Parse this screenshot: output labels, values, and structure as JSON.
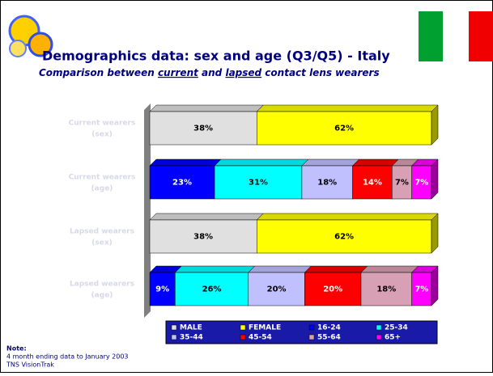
{
  "chart_data": {
    "type": "stacked-bar-3d",
    "title": "Demographics data: sex and age (Q3/Q5) - Italy",
    "subtitle": [
      "Comparison between ",
      "current",
      " and ",
      "lapsed",
      " contact lens wearers"
    ],
    "categories": [
      [
        "Current wearers",
        "(sex)"
      ],
      [
        "Current wearers",
        "(age)"
      ],
      [
        "Lapsed wearers",
        "(sex)"
      ],
      [
        "Lapsed wearers",
        "(age)"
      ]
    ],
    "series": [
      {
        "name": "MALE",
        "color": "#e0e0e0",
        "values": [
          38,
          null,
          38,
          null
        ],
        "value_labels": [
          "38%",
          null,
          "38%",
          null
        ]
      },
      {
        "name": "FEMALE",
        "color": "#ffff00",
        "values": [
          62,
          null,
          62,
          null
        ],
        "value_labels": [
          "62%",
          null,
          "62%",
          null
        ]
      },
      {
        "name": "16-24",
        "color": "#0000ff",
        "values": [
          null,
          23,
          null,
          9
        ],
        "value_labels": [
          null,
          "23%",
          null,
          "9%"
        ]
      },
      {
        "name": "25-34",
        "color": "#00ffff",
        "values": [
          null,
          31,
          null,
          26
        ],
        "value_labels": [
          null,
          "31%",
          null,
          "26%"
        ]
      },
      {
        "name": "35-44",
        "color": "#c0c0ff",
        "values": [
          null,
          18,
          null,
          20
        ],
        "value_labels": [
          null,
          "18%",
          null,
          "20%"
        ]
      },
      {
        "name": "45-54",
        "color": "#ff0000",
        "values": [
          null,
          14,
          null,
          20
        ],
        "value_labels": [
          null,
          "14%",
          null,
          "20%"
        ]
      },
      {
        "name": "55-64",
        "color": "#d8a0b4",
        "values": [
          null,
          7,
          null,
          18
        ],
        "value_labels": [
          null,
          "7%",
          null,
          "18%"
        ]
      },
      {
        "name": "65+",
        "color": "#ff00ff",
        "values": [
          null,
          7,
          null,
          7
        ],
        "value_labels": [
          null,
          "7%",
          null,
          "7%"
        ]
      }
    ],
    "note": {
      "title": "Note:",
      "lines": [
        "4 month ending data to January 2003",
        "TNS VisionTrak"
      ]
    }
  }
}
